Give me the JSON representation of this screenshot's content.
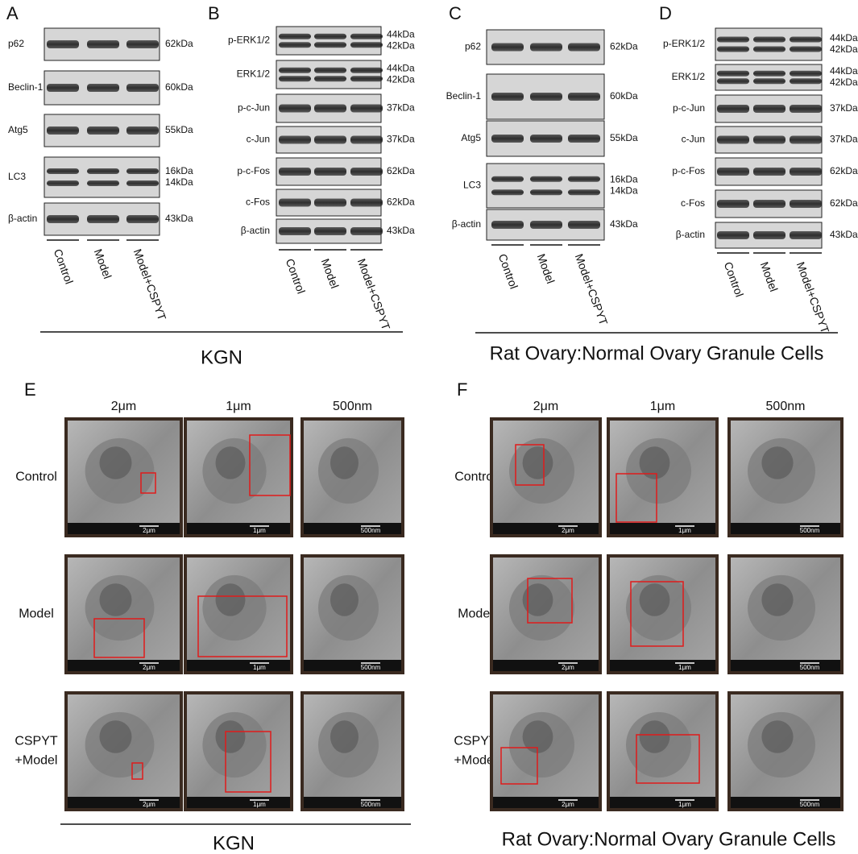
{
  "blots": [
    {
      "label": "A",
      "rows": [
        {
          "name": "p62",
          "kda": [
            "62kDa"
          ]
        },
        {
          "name": "Beclin-1",
          "kda": [
            "60kDa"
          ]
        },
        {
          "name": "Atg5",
          "kda": [
            "55kDa"
          ]
        },
        {
          "name": "LC3",
          "kda": [
            "16kDa",
            "14kDa"
          ]
        },
        {
          "name": "β-actin",
          "kda": [
            "43kDa"
          ]
        }
      ],
      "lanes": [
        "Control",
        "Model",
        "Model+CSPYT"
      ]
    },
    {
      "label": "B",
      "rows": [
        {
          "name": "p-ERK1/2",
          "kda": [
            "44kDa",
            "42kDa"
          ]
        },
        {
          "name": "ERK1/2",
          "kda": [
            "44kDa",
            "42kDa"
          ]
        },
        {
          "name": "p-c-Jun",
          "kda": [
            "37kDa"
          ]
        },
        {
          "name": "c-Jun",
          "kda": [
            "37kDa"
          ]
        },
        {
          "name": "p-c-Fos",
          "kda": [
            "62kDa"
          ]
        },
        {
          "name": "c-Fos",
          "kda": [
            "62kDa"
          ]
        },
        {
          "name": "β-actin",
          "kda": [
            "43kDa"
          ]
        }
      ],
      "lanes": [
        "Control",
        "Model",
        "Model+CSPYT"
      ]
    },
    {
      "label": "C",
      "rows": [
        {
          "name": "p62",
          "kda": [
            "62kDa"
          ]
        },
        {
          "name": "Beclin-1",
          "kda": [
            "60kDa"
          ]
        },
        {
          "name": "Atg5",
          "kda": [
            "55kDa"
          ]
        },
        {
          "name": "LC3",
          "kda": [
            "16kDa",
            "14kDa"
          ]
        },
        {
          "name": "β-actin",
          "kda": [
            "43kDa"
          ]
        }
      ],
      "lanes": [
        "Control",
        "Model",
        "Model+CSPYT"
      ]
    },
    {
      "label": "D",
      "rows": [
        {
          "name": "p-ERK1/2",
          "kda": [
            "44kDa",
            "42kDa"
          ]
        },
        {
          "name": "ERK1/2",
          "kda": [
            "44kDa",
            "42kDa"
          ]
        },
        {
          "name": "p-c-Jun",
          "kda": [
            "37kDa"
          ]
        },
        {
          "name": "c-Jun",
          "kda": [
            "37kDa"
          ]
        },
        {
          "name": "p-c-Fos",
          "kda": [
            "62kDa"
          ]
        },
        {
          "name": "c-Fos",
          "kda": [
            "62kDa"
          ]
        },
        {
          "name": "β-actin",
          "kda": [
            "43kDa"
          ]
        }
      ],
      "lanes": [
        "Control",
        "Model",
        "Model+CSPYT"
      ]
    }
  ],
  "top_groups": [
    "KGN",
    "Rat Ovary:Normal Ovary Granule Cells"
  ],
  "em": [
    {
      "label": "E",
      "columns": [
        "2μm",
        "1μm",
        "500nm"
      ],
      "rows": [
        {
          "name": [
            "Control"
          ],
          "scales": [
            "2μm",
            "1μm",
            "500nm"
          ]
        },
        {
          "name": [
            "Model"
          ],
          "scales": [
            "2μm",
            "1μm",
            "500nm"
          ]
        },
        {
          "name": [
            "CSPYT",
            "+Model"
          ],
          "scales": [
            "2μm",
            "1μm",
            "500nm"
          ]
        }
      ],
      "group": "KGN"
    },
    {
      "label": "F",
      "columns": [
        "2μm",
        "1μm",
        "500nm"
      ],
      "rows": [
        {
          "name": [
            "Control"
          ],
          "scales": [
            "2μm",
            "1μm",
            "500nm"
          ]
        },
        {
          "name": [
            "Model"
          ],
          "scales": [
            "2μm",
            "1μm",
            "500nm"
          ]
        },
        {
          "name": [
            "CSPYT",
            "+Model"
          ],
          "scales": [
            "2μm",
            "1μm",
            "500nm"
          ]
        }
      ],
      "group": "Rat Ovary:Normal Ovary Granule Cells"
    }
  ]
}
